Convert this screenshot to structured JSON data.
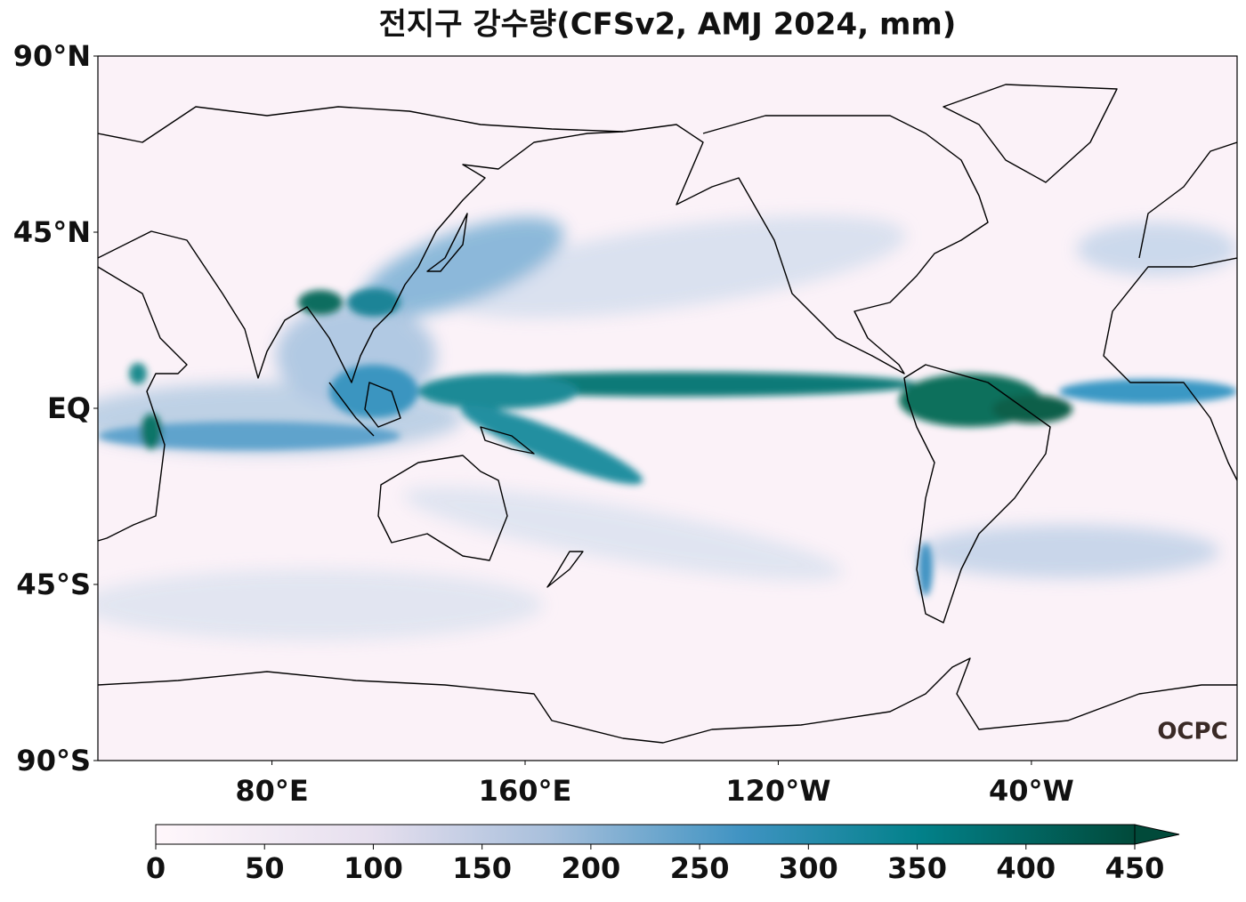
{
  "title": "전지구 강수량(CFSv2, AMJ 2024, mm)",
  "map": {
    "lonlim": [
      25,
      385
    ],
    "latlim": [
      -90,
      90
    ],
    "lat_ticks": [
      {
        "value": 90,
        "label": "90°N"
      },
      {
        "value": 45,
        "label": "45°N"
      },
      {
        "value": 0,
        "label": "EQ"
      },
      {
        "value": -45,
        "label": "45°S"
      },
      {
        "value": -90,
        "label": "90°S"
      }
    ],
    "lon_ticks": [
      {
        "value": 80,
        "label": "80°E"
      },
      {
        "value": 160,
        "label": "160°E"
      },
      {
        "value": 240,
        "label": "120°W"
      },
      {
        "value": 320,
        "label": "40°W"
      }
    ]
  },
  "colorbar": {
    "lim": [
      0,
      450
    ],
    "ticks": [
      0,
      50,
      100,
      150,
      200,
      250,
      300,
      350,
      400,
      450
    ],
    "extend": "max"
  },
  "logo": "OCPC"
}
